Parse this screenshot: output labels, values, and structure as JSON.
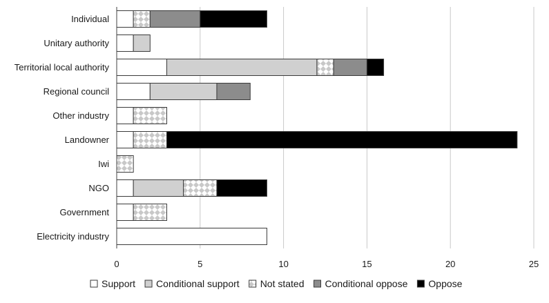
{
  "chart_data": {
    "type": "bar",
    "orientation": "horizontal",
    "stacked": true,
    "categories": [
      "Individual",
      "Unitary authority",
      "Territorial local authority",
      "Regional council",
      "Other industry",
      "Landowner",
      "Iwi",
      "NGO",
      "Government",
      "Electricity industry"
    ],
    "series": [
      {
        "name": "Support",
        "color": "#ffffff",
        "pattern": "none",
        "values": [
          1,
          1,
          3,
          2,
          1,
          1,
          0,
          1,
          1,
          9
        ]
      },
      {
        "name": "Conditional support",
        "color": "#d0d0d0",
        "pattern": "none",
        "values": [
          0,
          1,
          9,
          4,
          0,
          0,
          0,
          3,
          0,
          0
        ]
      },
      {
        "name": "Not stated",
        "color": "#d4d4d4",
        "pattern": "diamond-checker",
        "values": [
          1,
          0,
          1,
          0,
          2,
          2,
          1,
          2,
          2,
          0
        ]
      },
      {
        "name": "Conditional oppose",
        "color": "#8c8c8c",
        "pattern": "none",
        "values": [
          3,
          0,
          2,
          2,
          0,
          0,
          0,
          0,
          0,
          0
        ]
      },
      {
        "name": "Oppose",
        "color": "#000000",
        "pattern": "none",
        "values": [
          4,
          0,
          1,
          0,
          0,
          21,
          0,
          3,
          0,
          0
        ]
      }
    ],
    "xlim": [
      0,
      25
    ],
    "xticks": [
      "0",
      "5",
      "10",
      "15",
      "20",
      "25"
    ],
    "grid": "vertical",
    "legend_position": "bottom",
    "title": "",
    "xlabel": "",
    "ylabel": ""
  }
}
